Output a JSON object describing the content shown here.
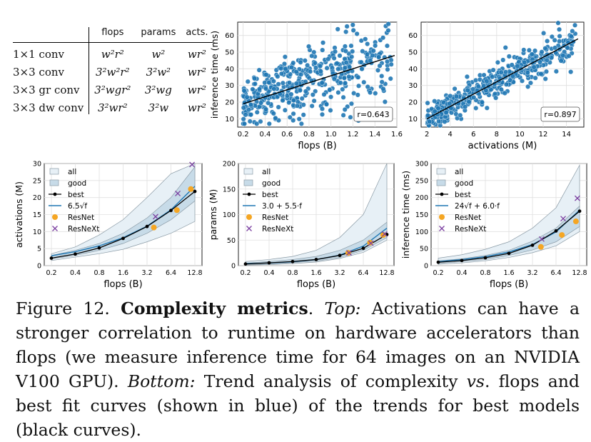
{
  "table": {
    "headers": [
      "",
      "flops",
      "params",
      "acts."
    ],
    "rows": [
      {
        "op": "1×1 conv",
        "flops": "w²r²",
        "params": "w²",
        "acts": "wr²"
      },
      {
        "op": "3×3 conv",
        "flops": "3²w²r²",
        "params": "3²w²",
        "acts": "wr²"
      },
      {
        "op": "3×3 gr conv",
        "flops": "3²wgr²",
        "params": "3²wg",
        "acts": "wr²"
      },
      {
        "op": "3×3 dw conv",
        "flops": "3²wr²",
        "params": "3²w",
        "acts": "wr²"
      }
    ]
  },
  "caption": {
    "label": "Figure 12.",
    "bold": "Complexity metrics",
    "after_bold": ".",
    "top_label": "Top:",
    "top_text": "Activations can have a stronger correlation to runtime on hardware accelerators than flops (we measure inference time for 64 images on an NVIDIA V100 GPU).",
    "bottom_label": "Bottom:",
    "bottom_text_1": "Trend analysis of complexity",
    "vs": "vs",
    "bottom_text_2": ". flops and best fit curves (shown in blue) of the trends for best models (black curves)."
  },
  "colors": {
    "scatter": "#1f77b4",
    "band": "#dbe8f0",
    "best": "#000000",
    "fit": "#1f77b4",
    "resnet": "#f5a623",
    "resnext": "#7b3fa0"
  },
  "chart_data": [
    {
      "type": "scatter",
      "xlabel": "flops (B)",
      "ylabel": "inference time (ms)",
      "xticks": [
        "0.2",
        "0.4",
        "0.6",
        "0.8",
        "1.0",
        "1.2",
        "1.4",
        "1.6"
      ],
      "yticks": [
        "10",
        "20",
        "30",
        "40",
        "50",
        "60"
      ],
      "xlim": [
        0.15,
        1.6
      ],
      "ylim": [
        5,
        68
      ],
      "annotation": "r=0.643",
      "fit_line": [
        [
          0.2,
          19
        ],
        [
          1.58,
          48
        ]
      ],
      "grid": true
    },
    {
      "type": "scatter",
      "xlabel": "activations (M)",
      "ylabel": "",
      "xticks": [
        "2",
        "4",
        "6",
        "8",
        "10",
        "12",
        "14"
      ],
      "yticks": [
        "10",
        "20",
        "30",
        "40",
        "50",
        "60"
      ],
      "xlim": [
        1.5,
        15.5
      ],
      "ylim": [
        5,
        68
      ],
      "annotation": "r=0.897",
      "fit_line": [
        [
          2,
          10
        ],
        [
          15,
          58
        ]
      ],
      "grid": true
    },
    {
      "type": "line",
      "xlabel": "flops (B)",
      "ylabel": "activations (M)",
      "x": [
        "0.2",
        "0.4",
        "0.8",
        "1.6",
        "3.2",
        "6.4",
        "12.8"
      ],
      "yticks": [
        "0",
        "5",
        "10",
        "15",
        "20",
        "25",
        "30"
      ],
      "ylim": [
        0,
        30
      ],
      "legend": [
        "all",
        "good",
        "best",
        "6.5√f",
        "ResNet",
        "ResNeXt"
      ],
      "series": [
        {
          "name": "all",
          "lower": [
            1.5,
            2.5,
            3.5,
            4.8,
            7,
            9.5,
            13
          ],
          "upper": [
            3.5,
            5.5,
            9,
            13.5,
            20,
            27,
            35
          ]
        },
        {
          "name": "good",
          "lower": [
            2,
            3,
            4.5,
            6.5,
            9.5,
            13.5,
            19
          ],
          "upper": [
            3,
            4.5,
            6.5,
            9.5,
            14,
            20,
            29
          ]
        },
        {
          "name": "best",
          "values": [
            2.2,
            3.4,
            5.2,
            8.0,
            11.5,
            16.2,
            21.8
          ]
        },
        {
          "name": "6.5√f",
          "values": [
            2.9,
            4.1,
            5.8,
            8.2,
            11.6,
            16.4,
            23.3
          ]
        }
      ],
      "resnet": [
        [
          3.9,
          11.2
        ],
        [
          7.6,
          16.3
        ],
        [
          11.4,
          22.5
        ]
      ],
      "resnext": [
        [
          4.1,
          14.4
        ],
        [
          7.8,
          21.2
        ],
        [
          11.8,
          29.7
        ]
      ]
    },
    {
      "type": "line",
      "xlabel": "flops (B)",
      "ylabel": "params (M)",
      "x": [
        "0.2",
        "0.4",
        "0.8",
        "1.6",
        "3.2",
        "6.4",
        "12.8"
      ],
      "yticks": [
        "0",
        "50",
        "100",
        "150",
        "200"
      ],
      "ylim": [
        0,
        200
      ],
      "legend": [
        "all",
        "good",
        "best",
        "3.0 + 5.5·f",
        "ResNet",
        "ResNeXt"
      ],
      "series": [
        {
          "name": "all",
          "lower": [
            1,
            2,
            4,
            7,
            14,
            26,
            50
          ],
          "upper": [
            8,
            12,
            18,
            30,
            55,
            100,
            200
          ]
        },
        {
          "name": "good",
          "lower": [
            2,
            3,
            6,
            9,
            16,
            30,
            55
          ],
          "upper": [
            5,
            8,
            12,
            18,
            30,
            50,
            85
          ]
        },
        {
          "name": "best",
          "values": [
            3.2,
            5.5,
            8,
            12,
            20,
            34,
            61
          ]
        },
        {
          "name": "3.0 + 5.5·f",
          "values": [
            4.1,
            5.2,
            7.4,
            11.8,
            20.6,
            38.2,
            73.4
          ]
        }
      ],
      "resnet": [
        [
          4.1,
          25
        ],
        [
          7.8,
          45
        ],
        [
          11.5,
          60
        ]
      ],
      "resnext": [
        [
          4.2,
          25
        ],
        [
          8.0,
          44
        ],
        [
          12.0,
          62
        ]
      ]
    },
    {
      "type": "line",
      "xlabel": "flops (B)",
      "ylabel": "inference time (ms)",
      "x": [
        "0.2",
        "0.4",
        "0.8",
        "1.6",
        "3.2",
        "6.4",
        "12.8"
      ],
      "yticks": [
        "0",
        "50",
        "100",
        "150",
        "200",
        "250",
        "300"
      ],
      "ylim": [
        0,
        300
      ],
      "legend": [
        "all",
        "good",
        "best",
        "24√f + 6.0·f",
        "ResNet",
        "ResNeXt"
      ],
      "series": [
        {
          "name": "all",
          "lower": [
            4,
            8,
            14,
            24,
            38,
            58,
            100
          ],
          "upper": [
            22,
            32,
            48,
            70,
            110,
            170,
            295
          ]
        },
        {
          "name": "good",
          "lower": [
            7,
            12,
            18,
            30,
            46,
            70,
            115
          ],
          "upper": [
            14,
            20,
            30,
            45,
            72,
            110,
            175
          ]
        },
        {
          "name": "best",
          "values": [
            10,
            15,
            23,
            36,
            60,
            102,
            160
          ]
        },
        {
          "name": "24√f + 6.0·f",
          "values": [
            12,
            17.6,
            26.3,
            40,
            62,
            99,
            163
          ]
        }
      ],
      "resnet": [
        [
          4.1,
          55
        ],
        [
          7.6,
          90
        ],
        [
          11.5,
          130
        ]
      ],
      "resnext": [
        [
          4.2,
          78
        ],
        [
          7.9,
          138
        ],
        [
          12.0,
          198
        ]
      ]
    }
  ]
}
